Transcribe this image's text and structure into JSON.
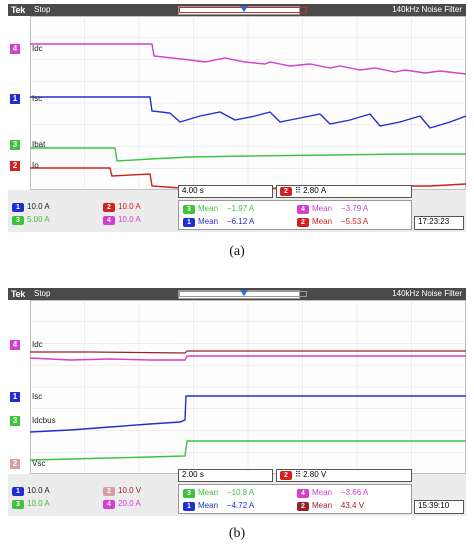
{
  "colors": {
    "ch1": "#1f2fd0",
    "ch2": "#d42020",
    "ch3": "#3ec23e",
    "ch4": "#d23fd2"
  },
  "captions": {
    "a": "(a)",
    "b": "(b)"
  },
  "scope_a": {
    "brand": "Tek",
    "state": "Stop",
    "filter": "140kHz  Noise Filter",
    "trace_labels": {
      "ch4": "Idc",
      "ch1": "Isc",
      "ch3": "Ibat",
      "ch2": "Io"
    },
    "ch_markers": {
      "ch4": "4",
      "ch1": "1",
      "ch3": "3",
      "ch2": "2"
    },
    "scales": {
      "ch1": "10.0 A",
      "ch2": "10.0 A",
      "ch3": "5.00 A",
      "ch4": "10.0 A"
    },
    "time": "4.00 s",
    "trigger": "2.80 A",
    "trig_ch": "2",
    "meas": [
      {
        "ch": "3",
        "label": "Mean",
        "value": "−1.97 A"
      },
      {
        "ch": "4",
        "label": "Mean",
        "value": "−3.79 A"
      },
      {
        "ch": "1",
        "label": "Mean",
        "value": "−6.12 A"
      },
      {
        "ch": "2",
        "label": "Mean",
        "value": "−5.53 A"
      }
    ],
    "clock": "17:23:23"
  },
  "scope_b": {
    "brand": "Tek",
    "state": "Stop",
    "filter": "140kHz  Noise Filter",
    "trace_labels": {
      "ch4": "Idc",
      "ch1": "Isc",
      "ch3": "Idcbus",
      "ch2": "Vsc"
    },
    "ch_markers": {
      "ch4": "4",
      "ch1": "1",
      "ch3": "3",
      "ch2": "2"
    },
    "scales": {
      "ch1": "10.0 A",
      "ch2": "10.0 V",
      "ch3": "10.0 A",
      "ch4": "20.0 A"
    },
    "time": "2.00 s",
    "trigger": "2.80 V",
    "trig_ch": "2",
    "meas": [
      {
        "ch": "3",
        "label": "Mean",
        "value": "−10.8 A"
      },
      {
        "ch": "4",
        "label": "Mean",
        "value": "−3.66 A"
      },
      {
        "ch": "1",
        "label": "Mean",
        "value": "−4.72 A"
      },
      {
        "ch": "2",
        "label": "Mean",
        "value": "43.4 V"
      }
    ],
    "clock": "15:39:10"
  }
}
